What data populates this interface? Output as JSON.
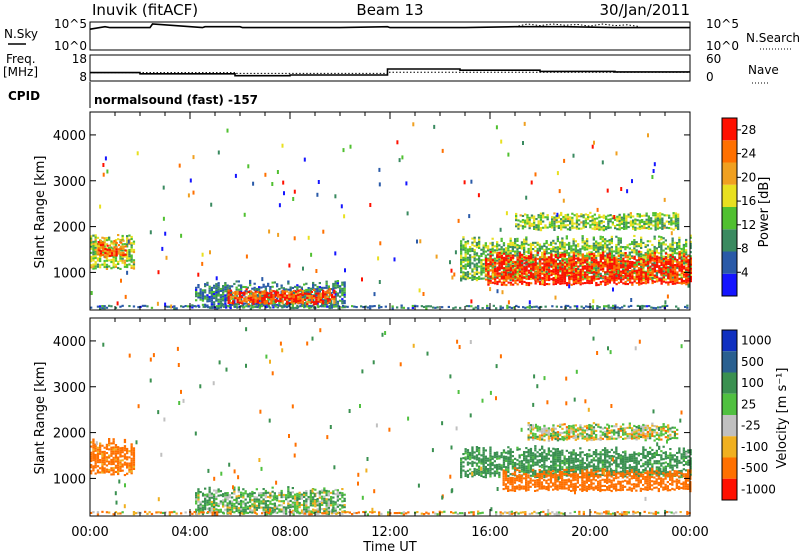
{
  "header": {
    "station": "Inuvik (fitACF)",
    "beam": "Beam 13",
    "date": "30/Jan/2011"
  },
  "chart_data": [
    {
      "type": "line",
      "panel": "nsky-nsearch",
      "labels": {
        "left": "N.Sky",
        "right": "N.Search"
      },
      "left_ticks": [
        "10^5",
        "10^0"
      ],
      "right_ticks": [
        "10^5",
        "10^0"
      ],
      "left_range": [
        1,
        100000
      ],
      "series": [
        {
          "name": "N.Sky",
          "style": "solid",
          "x": [
            0.0,
            0.6,
            0.8,
            2.4,
            2.5,
            4.5,
            4.6,
            6.0,
            6.1,
            8.0,
            10.0,
            11.9,
            12.0,
            15.0,
            17.0,
            19.0,
            21.0,
            23.0,
            24.0
          ],
          "y": [
            10000,
            30000,
            20000,
            20000,
            100000,
            20000,
            30000,
            30000,
            20000,
            20000,
            20000,
            30000,
            20000,
            20000,
            30000,
            30000,
            20000,
            20000,
            20000
          ]
        },
        {
          "name": "N.Search",
          "style": "dotted",
          "x": [
            17.0,
            17.5,
            18.0,
            18.5,
            19.0,
            19.5,
            20.0,
            20.5,
            21.0,
            21.5,
            22.0
          ],
          "y": [
            30000,
            100000,
            50000,
            100000,
            60000,
            80000,
            40000,
            100000,
            50000,
            70000,
            30000
          ]
        }
      ]
    },
    {
      "type": "line",
      "panel": "freq-nave",
      "labels": {
        "left_top": "Freq.",
        "left_bottom": "[MHz]",
        "right": "Nave"
      },
      "left_ticks": [
        "18",
        "8"
      ],
      "right_ticks": [
        "60",
        "0"
      ],
      "left_range": [
        8,
        18
      ],
      "right_range": [
        0,
        60
      ],
      "series": [
        {
          "name": "Freq.",
          "style": "solid",
          "x": [
            0.0,
            2.0,
            2.0,
            5.8,
            5.8,
            8.0,
            8.0,
            11.9,
            11.9,
            14.8,
            14.8,
            18.0,
            18.0,
            21.0,
            21.0,
            24.0
          ],
          "y": [
            11.5,
            11.5,
            11.0,
            11.0,
            10.2,
            10.2,
            10.5,
            10.5,
            13.0,
            13.0,
            12.5,
            12.5,
            12.0,
            12.0,
            11.8,
            11.8
          ]
        },
        {
          "name": "Nave",
          "style": "dotted",
          "x": [
            0.0,
            5.8,
            5.8,
            11.9,
            11.9,
            24.0
          ],
          "y": [
            21,
            21,
            19,
            19,
            22,
            22
          ]
        }
      ]
    },
    {
      "type": "text",
      "panel": "cpid",
      "label": "CPID",
      "program": "normalsound (fast) -157"
    },
    {
      "type": "heatmap",
      "panel": "power",
      "ylabel": "Slant Range [km]",
      "yticks": [
        1000,
        2000,
        3000,
        4000
      ],
      "ylim": [
        180,
        4500
      ],
      "xlim": [
        0,
        24
      ],
      "colorbar_label": "Power [dB]",
      "colorbar_ticks": [
        4,
        8,
        12,
        16,
        20,
        24,
        28
      ],
      "colorbar_range": [
        0,
        30
      ],
      "colors": [
        "#1515ff",
        "#2a5aa8",
        "#3a8a60",
        "#50c030",
        "#e8e020",
        "#f0a020",
        "#ff7000",
        "#ff1000"
      ],
      "regions": [
        {
          "t": [
            0.0,
            1.8
          ],
          "r": [
            1050,
            1850
          ],
          "level": 15
        },
        {
          "t": [
            0.3,
            1.4
          ],
          "r": [
            1300,
            1700
          ],
          "level": 24
        },
        {
          "t": [
            4.2,
            10.2
          ],
          "r": [
            200,
            800
          ],
          "level": 8
        },
        {
          "t": [
            5.5,
            9.8
          ],
          "r": [
            280,
            620
          ],
          "level": 26
        },
        {
          "t": [
            14.8,
            24.0
          ],
          "r": [
            800,
            1800
          ],
          "level": 13
        },
        {
          "t": [
            15.8,
            24.0
          ],
          "r": [
            700,
            1450
          ],
          "level": 28
        },
        {
          "t": [
            17.0,
            23.5
          ],
          "r": [
            1900,
            2300
          ],
          "level": 14
        },
        {
          "t": [
            0.0,
            24.0
          ],
          "r": [
            190,
            260
          ],
          "level": 8
        }
      ]
    },
    {
      "type": "heatmap",
      "panel": "velocity",
      "ylabel": "Slant Range [km]",
      "yticks": [
        1000,
        2000,
        3000,
        4000
      ],
      "ylim": [
        180,
        4500
      ],
      "xlim": [
        0,
        24
      ],
      "xticks": [
        "00:00",
        "04:00",
        "08:00",
        "12:00",
        "16:00",
        "20:00",
        "00:00"
      ],
      "xlabel": "Time UT",
      "colorbar_label": "Velocity [m s⁻¹]",
      "colorbar_ticks": [
        "1000",
        "500",
        "100",
        "25",
        "-25",
        "-100",
        "-500",
        "-1000"
      ],
      "colors": [
        "#1030c0",
        "#2a6090",
        "#3a9050",
        "#50c040",
        "#c0c0c0",
        "#f0b020",
        "#ff7000",
        "#ff1000"
      ],
      "regions": [
        {
          "t": [
            0.0,
            1.8
          ],
          "r": [
            1050,
            1850
          ],
          "value": -200
        },
        {
          "t": [
            4.2,
            10.2
          ],
          "r": [
            200,
            800
          ],
          "value": 80
        },
        {
          "t": [
            14.8,
            24.0
          ],
          "r": [
            1000,
            1700
          ],
          "value": 200
        },
        {
          "t": [
            16.5,
            24.0
          ],
          "r": [
            700,
            1200
          ],
          "value": -300
        },
        {
          "t": [
            17.5,
            23.5
          ],
          "r": [
            1800,
            2200
          ],
          "value": 0
        },
        {
          "t": [
            0.0,
            24.0
          ],
          "r": [
            190,
            260
          ],
          "value": -60
        }
      ]
    }
  ]
}
